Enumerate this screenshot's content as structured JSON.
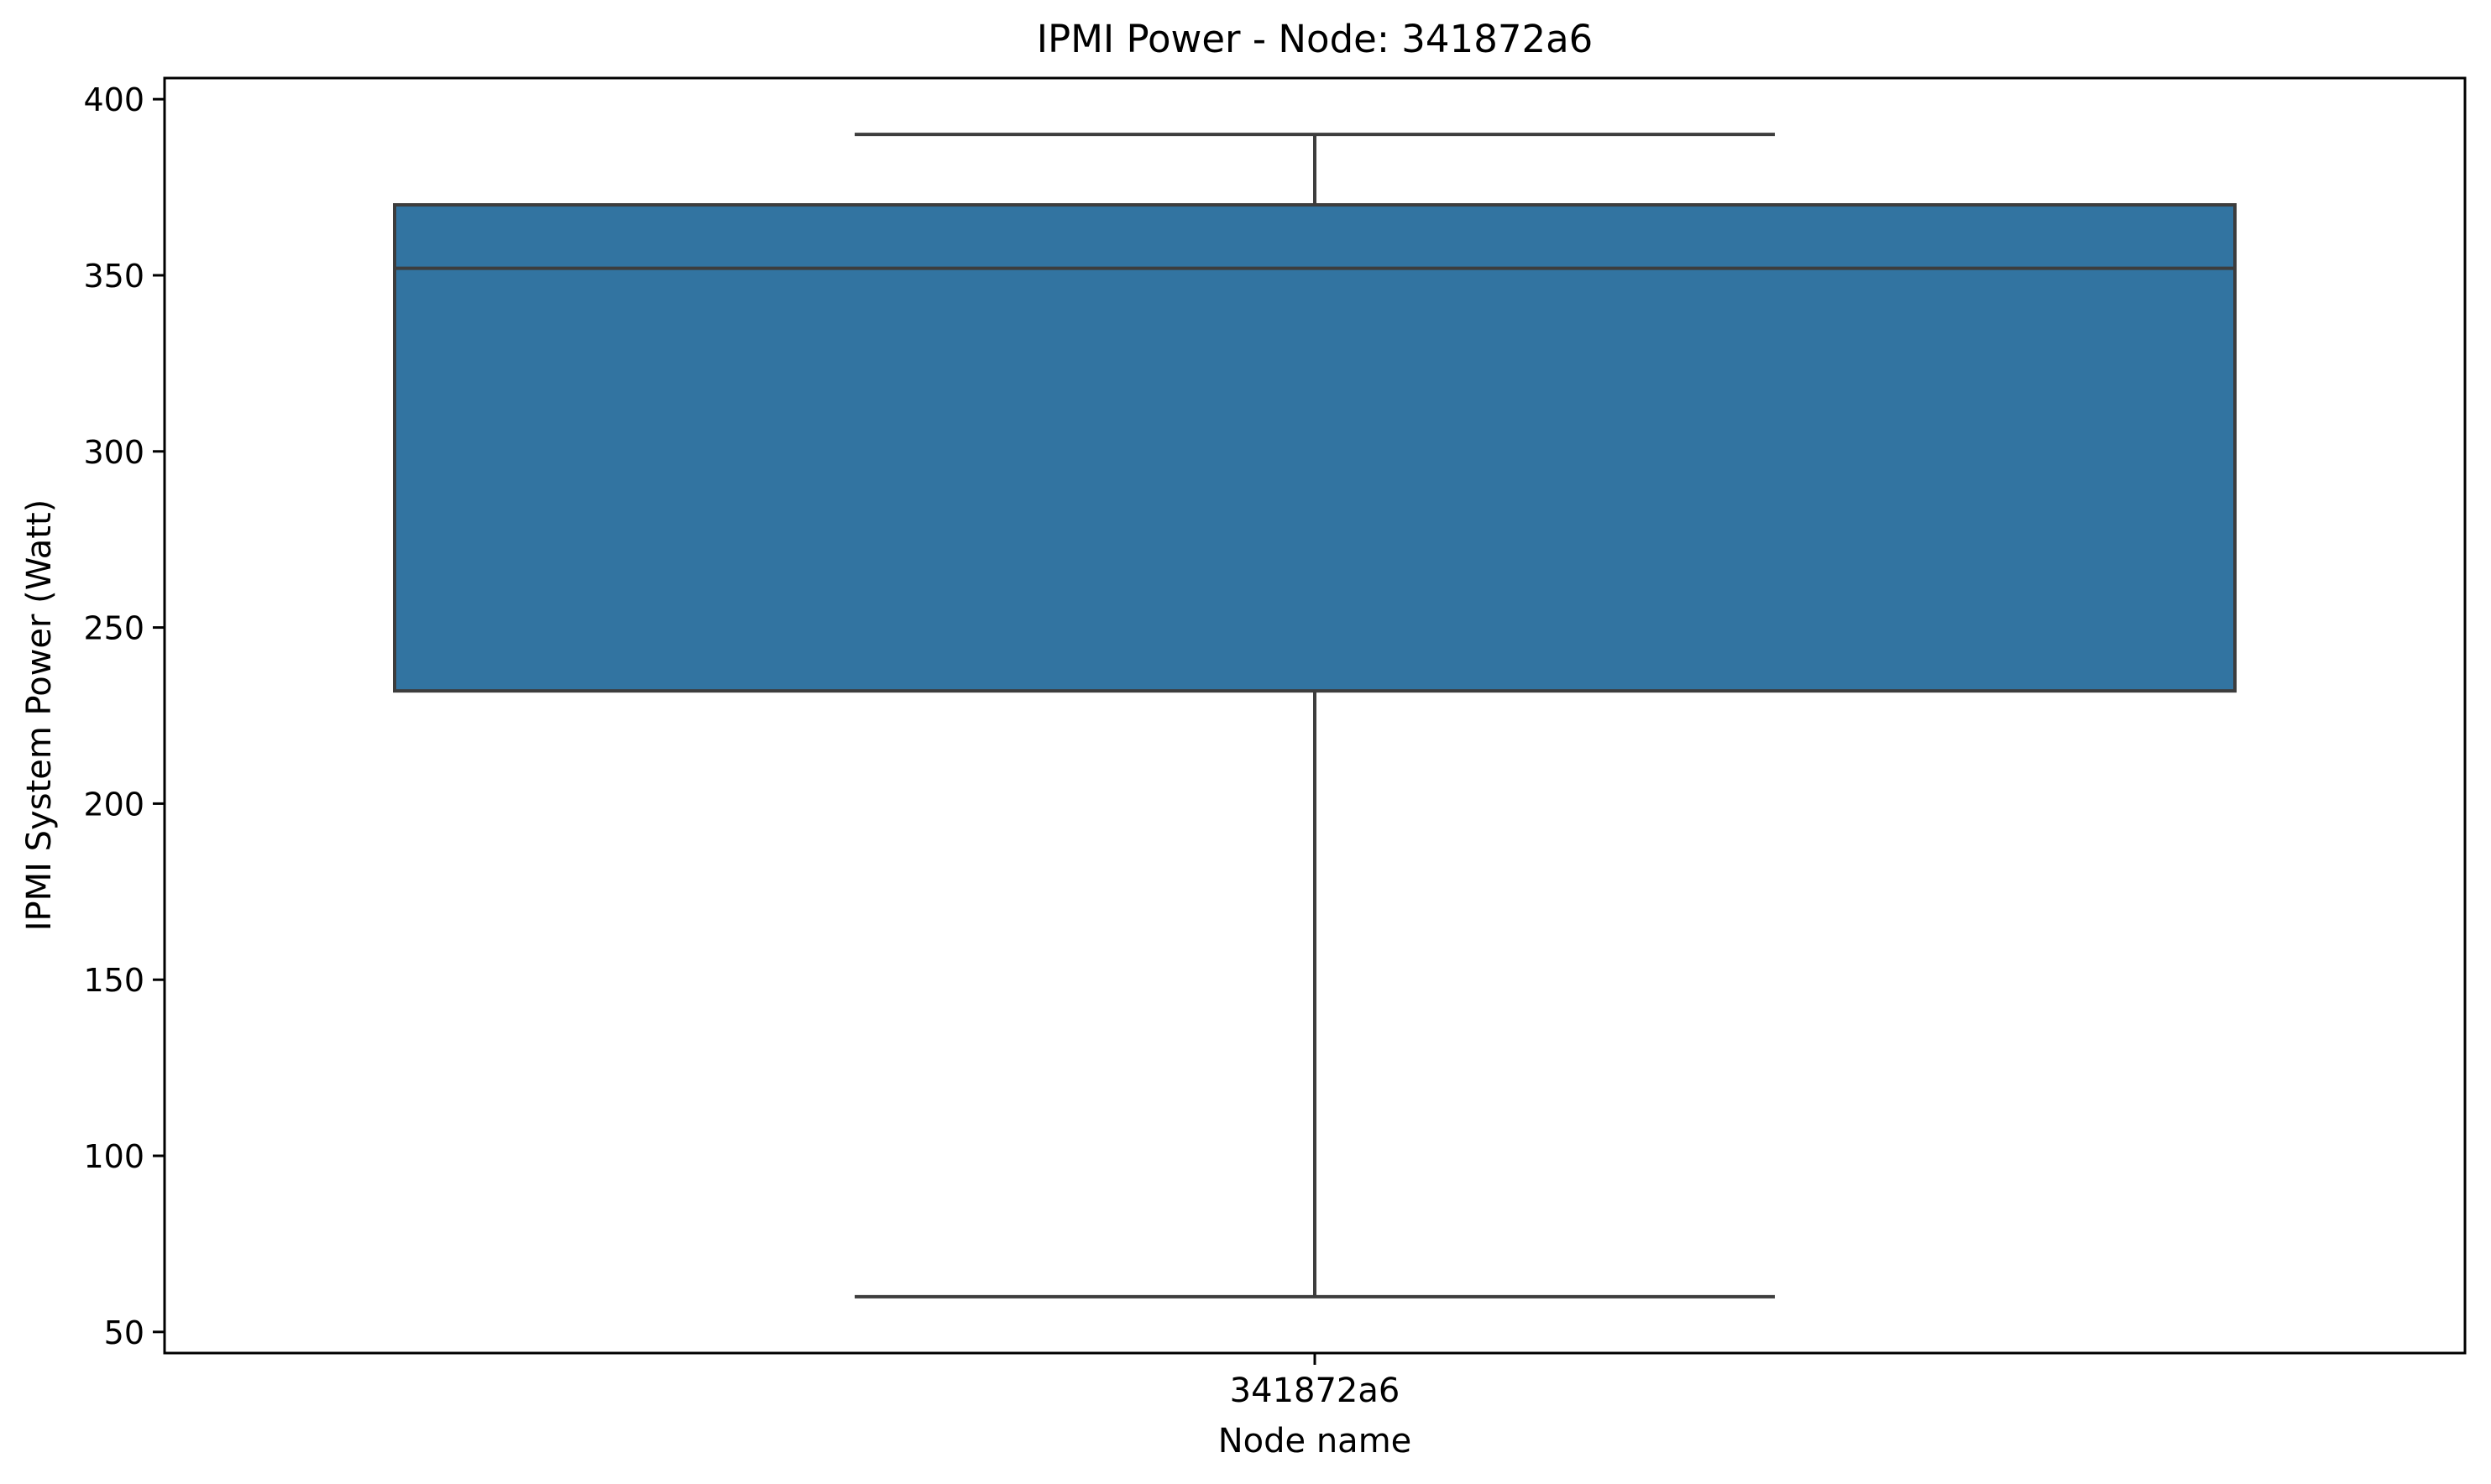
{
  "chart_data": {
    "type": "box",
    "title": "IPMI Power - Node: 341872a6",
    "xlabel": "Node name",
    "ylabel": "IPMI System Power (Watt)",
    "categories": [
      "341872a6"
    ],
    "ylim": [
      44,
      406
    ],
    "yticks": [
      50,
      100,
      150,
      200,
      250,
      300,
      350,
      400
    ],
    "boxes": [
      {
        "category": "341872a6",
        "whisker_low": 60,
        "q1": 232,
        "median": 352,
        "q3": 370,
        "whisker_high": 390
      }
    ],
    "grid": false,
    "colors": {
      "box_fill": "#3274a1",
      "line": "#3d3d3d"
    }
  }
}
